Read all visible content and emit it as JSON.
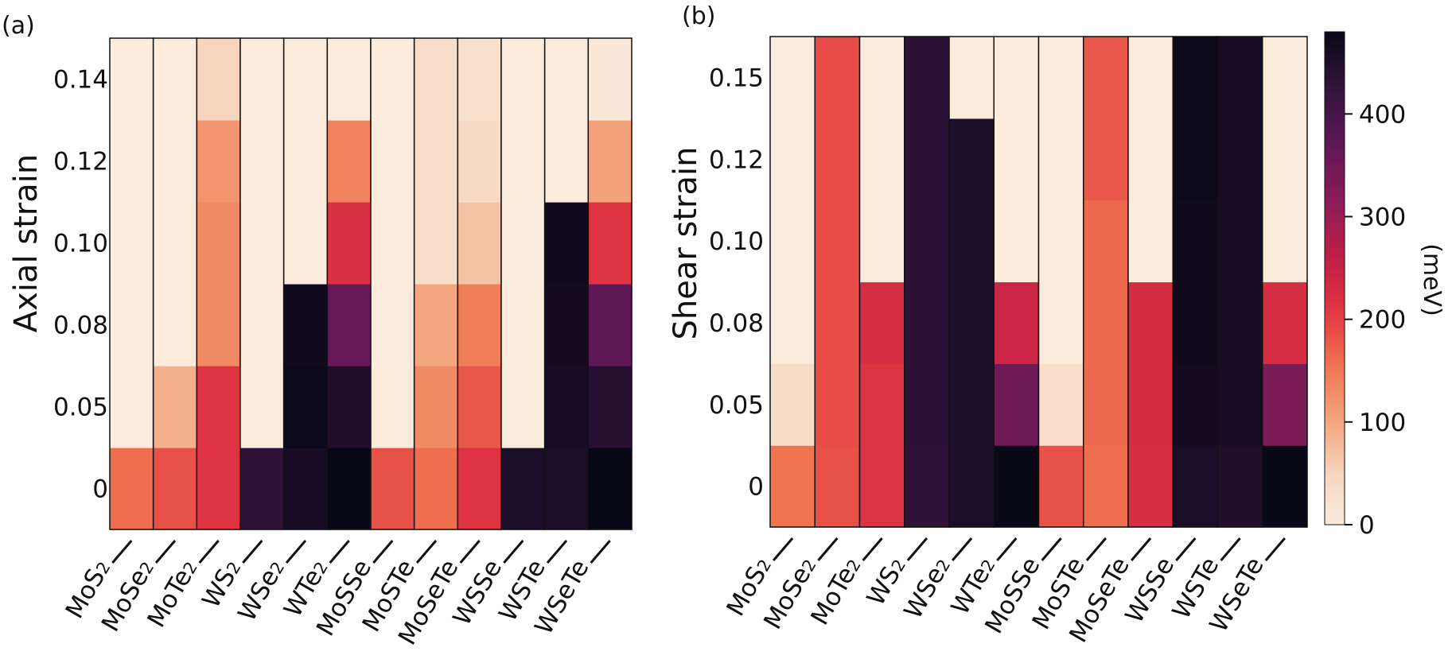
{
  "chart_data": [
    {
      "panel": "(a)",
      "type": "heatmap",
      "ylabel": "Axial strain",
      "categories": [
        {
          "base": "MoS",
          "sub": "2"
        },
        {
          "base": "MoSe",
          "sub": "2"
        },
        {
          "base": "MoTe",
          "sub": "2"
        },
        {
          "base": "WS",
          "sub": "2"
        },
        {
          "base": "WSe",
          "sub": "2"
        },
        {
          "base": "WTe",
          "sub": "2"
        },
        {
          "base": "MoSSe",
          "sub": ""
        },
        {
          "base": "MoSTe",
          "sub": ""
        },
        {
          "base": "MoSeTe",
          "sub": ""
        },
        {
          "base": "WSSe",
          "sub": ""
        },
        {
          "base": "WSTe",
          "sub": ""
        },
        {
          "base": "WSeTe",
          "sub": ""
        }
      ],
      "y_tick_labels": [
        "0",
        "0.05",
        "0.08",
        "0.10",
        "0.12",
        "0.14"
      ],
      "values_meV": [
        [
          160,
          0,
          0,
          0,
          0,
          0
        ],
        [
          185,
          90,
          0,
          0,
          0,
          0
        ],
        [
          215,
          215,
          130,
          130,
          120,
          50
        ],
        [
          430,
          0,
          0,
          0,
          0,
          0
        ],
        [
          460,
          475,
          470,
          0,
          0,
          0
        ],
        [
          480,
          450,
          360,
          220,
          140,
          0
        ],
        [
          185,
          0,
          0,
          0,
          0,
          0
        ],
        [
          160,
          130,
          100,
          30,
          30,
          30
        ],
        [
          215,
          180,
          145,
          70,
          40,
          25
        ],
        [
          455,
          0,
          0,
          0,
          0,
          0
        ],
        [
          455,
          460,
          465,
          470,
          0,
          0
        ],
        [
          480,
          440,
          370,
          215,
          105,
          10
        ]
      ]
    },
    {
      "panel": "(b)",
      "type": "heatmap",
      "ylabel": "Shear strain",
      "categories": [
        {
          "base": "MoS",
          "sub": "2"
        },
        {
          "base": "MoSe",
          "sub": "2"
        },
        {
          "base": "MoTe",
          "sub": "2"
        },
        {
          "base": "WS",
          "sub": "2"
        },
        {
          "base": "WSe",
          "sub": "2"
        },
        {
          "base": "WTe",
          "sub": "2"
        },
        {
          "base": "MoSSe",
          "sub": ""
        },
        {
          "base": "MoSTe",
          "sub": ""
        },
        {
          "base": "MoSeTe",
          "sub": ""
        },
        {
          "base": "WSSe",
          "sub": ""
        },
        {
          "base": "WSTe",
          "sub": ""
        },
        {
          "base": "WSeTe",
          "sub": ""
        }
      ],
      "y_tick_labels": [
        "0",
        "0.05",
        "0.08",
        "0.10",
        "0.12",
        "0.15"
      ],
      "values_meV": [
        [
          155,
          35,
          0,
          0,
          0,
          0
        ],
        [
          185,
          190,
          190,
          190,
          190,
          190
        ],
        [
          215,
          215,
          225,
          0,
          0,
          0
        ],
        [
          430,
          435,
          435,
          435,
          435,
          435
        ],
        [
          455,
          455,
          455,
          455,
          455,
          0
        ],
        [
          480,
          350,
          245,
          0,
          0,
          0
        ],
        [
          185,
          30,
          0,
          0,
          0,
          0
        ],
        [
          160,
          165,
          165,
          165,
          180,
          180
        ],
        [
          225,
          230,
          230,
          0,
          0,
          0
        ],
        [
          455,
          465,
          470,
          470,
          475,
          475
        ],
        [
          450,
          460,
          460,
          460,
          460,
          460
        ],
        [
          480,
          335,
          225,
          0,
          0,
          0
        ]
      ]
    }
  ],
  "colorbar": {
    "title": "(meV)",
    "min": 0,
    "max": 480,
    "ticks": [
      0,
      100,
      200,
      300,
      400
    ],
    "tick_labels": [
      "0",
      "100",
      "200",
      "300",
      "400"
    ]
  }
}
